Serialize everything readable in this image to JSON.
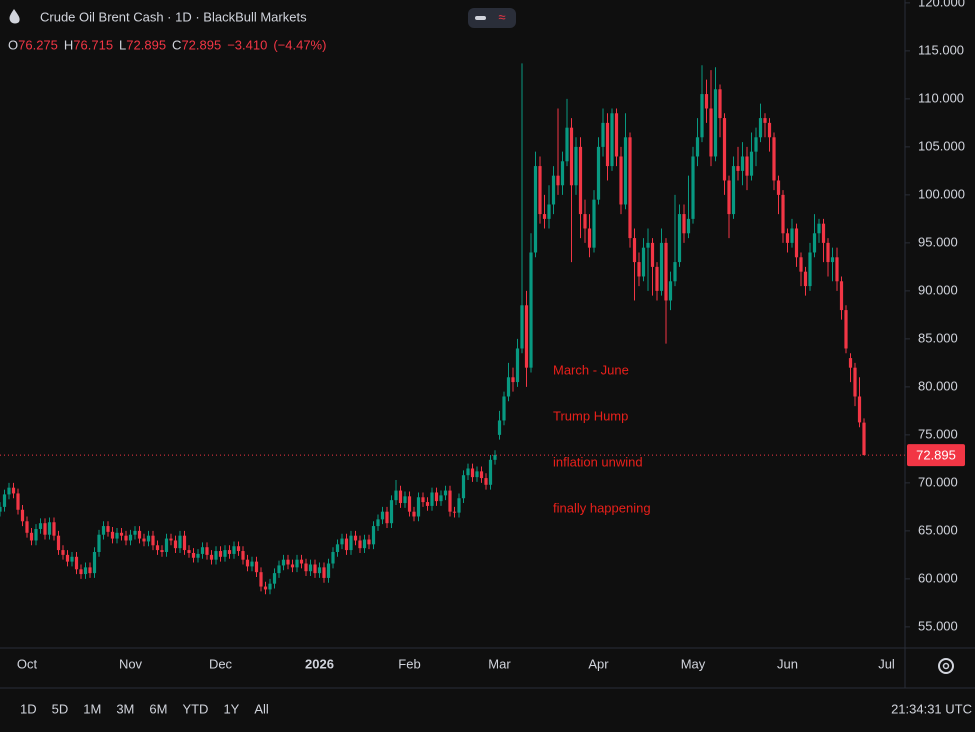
{
  "chart_data": {
    "type": "candlestick",
    "title": "Crude Oil Brent Cash · 1D · BlackBull Markets",
    "ohlc_legend": {
      "items": [
        {
          "key": "O",
          "value": "76.275"
        },
        {
          "key": "H",
          "value": "76.715"
        },
        {
          "key": "L",
          "value": "72.895"
        },
        {
          "key": "C",
          "value": "72.895"
        }
      ],
      "change": "−3.410",
      "change_pct": "(−4.47%)"
    },
    "annotation": [
      "March - June",
      "Trump Hump",
      "inflation unwind",
      "finally happening"
    ],
    "annotation_color": "#e8201b",
    "up_color": "#089981",
    "down_color": "#f23645",
    "grid": false,
    "ylim": [
      52.8,
      120.3
    ],
    "yticks": [
      {
        "value": 55,
        "label": "55.000"
      },
      {
        "value": 60,
        "label": "60.000"
      },
      {
        "value": 65,
        "label": "65.000"
      },
      {
        "value": 70,
        "label": "70.000"
      },
      {
        "value": 75,
        "label": "75.000"
      },
      {
        "value": 80,
        "label": "80.000"
      },
      {
        "value": 85,
        "label": "85.000"
      },
      {
        "value": 90,
        "label": "90.000"
      },
      {
        "value": 95,
        "label": "95.000"
      },
      {
        "value": 100,
        "label": "100.000"
      },
      {
        "value": 105,
        "label": "105.000"
      },
      {
        "value": 110,
        "label": "110.000"
      },
      {
        "value": 115,
        "label": "115.000"
      },
      {
        "value": 120,
        "label": "120.000"
      }
    ],
    "categories": [
      null,
      null,
      null,
      null,
      null,
      null,
      "Oct",
      null,
      null,
      null,
      null,
      null,
      null,
      null,
      null,
      null,
      null,
      null,
      null,
      null,
      null,
      null,
      null,
      null,
      null,
      null,
      null,
      null,
      null,
      "Nov",
      null,
      null,
      null,
      null,
      null,
      null,
      null,
      null,
      null,
      null,
      null,
      null,
      null,
      null,
      null,
      null,
      null,
      null,
      null,
      "Dec",
      null,
      null,
      null,
      null,
      null,
      null,
      null,
      null,
      null,
      null,
      null,
      null,
      null,
      null,
      null,
      null,
      null,
      null,
      null,
      null,
      null,
      "2026",
      null,
      null,
      null,
      null,
      null,
      null,
      null,
      null,
      null,
      null,
      null,
      null,
      null,
      null,
      null,
      null,
      null,
      null,
      null,
      "Feb",
      null,
      null,
      null,
      null,
      null,
      null,
      null,
      null,
      null,
      null,
      null,
      null,
      null,
      null,
      null,
      null,
      null,
      null,
      null,
      "Mar",
      null,
      null,
      null,
      null,
      null,
      null,
      null,
      null,
      null,
      null,
      null,
      null,
      null,
      null,
      null,
      null,
      null,
      null,
      null,
      null,
      null,
      "Apr",
      null,
      null,
      null,
      null,
      null,
      null,
      null,
      null,
      null,
      null,
      null,
      null,
      null,
      null,
      null,
      null,
      null,
      null,
      null,
      null,
      "May",
      null,
      null,
      null,
      null,
      null,
      null,
      null,
      null,
      null,
      null,
      null,
      null,
      null,
      null,
      null,
      null,
      null,
      null,
      null,
      null,
      "Jun",
      null,
      null,
      null,
      null,
      null,
      null,
      null,
      null,
      null,
      null,
      null,
      null,
      null,
      null,
      null,
      null,
      null,
      null,
      null,
      null,
      null,
      "Jul"
    ],
    "open": [
      67.0,
      67.5,
      68.8,
      69.5,
      68.9,
      67.2,
      66.0,
      64.8,
      64.0,
      65.2,
      65.8,
      64.6,
      65.9,
      64.5,
      63.0,
      62.5,
      61.8,
      62.3,
      61.0,
      60.5,
      61.2,
      60.6,
      62.8,
      64.6,
      65.5,
      64.9,
      64.2,
      64.8,
      64.5,
      64.0,
      64.6,
      65.0,
      64.2,
      63.9,
      64.5,
      63.5,
      63.0,
      62.8,
      64.2,
      64.0,
      63.2,
      64.5,
      63.0,
      62.7,
      62.2,
      62.6,
      63.3,
      62.5,
      62.0,
      62.9,
      62.3,
      63.0,
      62.6,
      63.4,
      62.9,
      62.0,
      61.3,
      61.8,
      60.7,
      59.2,
      58.9,
      59.5,
      60.6,
      61.4,
      62.0,
      61.5,
      61.2,
      62.0,
      61.6,
      60.8,
      61.5,
      60.6,
      61.2,
      60.1,
      61.6,
      62.8,
      63.6,
      64.2,
      63.0,
      64.5,
      64.0,
      63.2,
      64.1,
      63.6,
      65.5,
      66.2,
      67.0,
      65.8,
      68.2,
      69.2,
      67.9,
      68.6,
      67.0,
      66.5,
      68.5,
      68.0,
      67.6,
      69.0,
      68.1,
      68.7,
      69.2,
      67.0,
      66.9,
      68.4,
      70.8,
      71.5,
      70.6,
      71.2,
      70.5,
      69.8,
      72.4,
      75.0,
      76.5,
      79.0,
      81.0,
      80.5,
      84.0,
      88.5,
      82.0,
      94.0,
      103.0,
      98.0,
      97.5,
      99.0,
      102.0,
      101.0,
      103.5,
      107.0,
      101.0,
      105.0,
      98.0,
      96.5,
      94.5,
      99.5,
      105.0,
      107.5,
      103.0,
      108.5,
      104.0,
      99.0,
      106.0,
      95.5,
      93.0,
      91.5,
      94.5,
      95.0,
      92.5,
      90.0,
      95.0,
      89.0,
      91.0,
      93.0,
      98.0,
      96.0,
      97.5,
      104.0,
      106.0,
      110.5,
      109.0,
      104.0,
      111.0,
      108.0,
      101.5,
      98.0,
      103.0,
      102.5,
      104.0,
      102.0,
      104.5,
      106.0,
      108.0,
      107.5,
      106.0,
      101.5,
      100.0,
      96.0,
      95.0,
      96.5,
      93.5,
      92.0,
      90.5,
      94.0,
      96.0,
      97.0,
      95.0,
      93.0,
      93.5,
      91.0,
      88.0,
      83.0,
      82.0,
      79.0,
      76.275,
      null,
      null,
      null,
      null,
      null
    ],
    "high": [
      68.0,
      69.3,
      70.0,
      70.0,
      69.4,
      67.7,
      66.5,
      65.3,
      65.7,
      66.3,
      66.3,
      66.4,
      66.4,
      65.0,
      63.5,
      63.0,
      62.8,
      62.8,
      61.5,
      61.7,
      61.7,
      63.3,
      65.1,
      66.0,
      66.0,
      65.4,
      65.3,
      65.3,
      65.0,
      65.1,
      65.5,
      65.5,
      64.7,
      65.0,
      65.0,
      64.0,
      63.5,
      64.7,
      64.7,
      64.5,
      65.0,
      65.0,
      63.5,
      63.2,
      63.1,
      63.8,
      63.8,
      63.0,
      63.4,
      63.4,
      63.5,
      63.5,
      63.9,
      63.9,
      63.4,
      62.5,
      62.3,
      62.3,
      61.2,
      59.7,
      60.0,
      61.1,
      61.9,
      62.5,
      62.5,
      62.0,
      62.5,
      62.5,
      62.1,
      62.0,
      62.0,
      61.7,
      61.7,
      62.1,
      63.3,
      64.1,
      64.7,
      64.7,
      65.0,
      65.0,
      64.5,
      64.6,
      64.6,
      66.0,
      66.7,
      67.5,
      67.5,
      68.7,
      70.3,
      69.7,
      69.1,
      69.1,
      67.5,
      69.0,
      69.0,
      68.5,
      69.5,
      69.5,
      69.2,
      69.7,
      69.7,
      67.5,
      68.9,
      71.3,
      72.0,
      72.0,
      71.7,
      71.7,
      71.0,
      72.9,
      73.4,
      77.5,
      79.5,
      82.5,
      82.0,
      85.0,
      113.7,
      90.0,
      96.0,
      104.5,
      104.0,
      100.0,
      101.0,
      103.0,
      109.0,
      104.5,
      110.0,
      108.0,
      106.0,
      106.0,
      99.5,
      98.0,
      100.5,
      106.0,
      109.0,
      108.5,
      109.0,
      109.0,
      105.0,
      108.5,
      106.5,
      96.5,
      94.0,
      95.5,
      96.5,
      95.5,
      93.0,
      96.5,
      95.5,
      92.0,
      100.0,
      99.0,
      99.0,
      102.0,
      105.0,
      108.0,
      113.5,
      112.0,
      113.0,
      113.3,
      111.5,
      108.5,
      102.0,
      104.0,
      105.0,
      105.5,
      105.0,
      106.5,
      107.0,
      109.5,
      108.5,
      108.0,
      106.5,
      102.0,
      100.5,
      96.5,
      97.5,
      97.0,
      94.0,
      92.5,
      95.0,
      98.0,
      97.5,
      97.5,
      95.5,
      94.5,
      94.5,
      91.5,
      88.5,
      83.5,
      82.5,
      81.0,
      76.715,
      null,
      null,
      null,
      null,
      null
    ],
    "low": [
      66.5,
      67.0,
      68.3,
      68.4,
      66.7,
      65.5,
      64.3,
      63.5,
      63.5,
      64.7,
      64.1,
      64.1,
      64.0,
      62.5,
      62.0,
      61.3,
      61.3,
      60.5,
      60.0,
      60.0,
      60.1,
      60.1,
      62.3,
      64.1,
      64.4,
      63.7,
      63.7,
      64.0,
      63.5,
      63.5,
      64.1,
      63.7,
      63.4,
      63.4,
      63.0,
      62.5,
      62.3,
      62.3,
      63.5,
      62.7,
      62.7,
      62.5,
      62.2,
      61.7,
      61.7,
      62.1,
      62.0,
      61.5,
      61.5,
      61.8,
      61.8,
      62.1,
      62.1,
      62.4,
      61.5,
      60.8,
      60.8,
      60.2,
      58.7,
      58.4,
      58.4,
      59.0,
      60.1,
      60.9,
      61.0,
      60.7,
      60.7,
      61.1,
      60.3,
      60.3,
      60.1,
      60.1,
      59.6,
      59.6,
      61.1,
      62.3,
      63.1,
      62.5,
      62.5,
      63.5,
      62.7,
      62.7,
      63.1,
      63.1,
      65.0,
      65.7,
      65.3,
      65.3,
      67.7,
      67.4,
      67.4,
      66.5,
      66.0,
      66.0,
      67.5,
      67.1,
      67.1,
      67.6,
      67.6,
      68.2,
      66.5,
      66.4,
      66.4,
      67.9,
      70.3,
      70.1,
      70.1,
      70.0,
      69.3,
      69.3,
      71.9,
      74.5,
      76.0,
      78.5,
      79.5,
      80.0,
      83.5,
      80.0,
      81.5,
      93.5,
      97.0,
      96.5,
      96.5,
      98.0,
      100.0,
      100.0,
      103.0,
      93.0,
      100.0,
      95.5,
      95.0,
      93.5,
      94.0,
      99.0,
      104.0,
      101.5,
      102.5,
      103.0,
      98.0,
      98.5,
      94.5,
      89.0,
      90.5,
      91.0,
      90.0,
      89.5,
      89.0,
      89.5,
      84.5,
      88.0,
      90.5,
      92.5,
      95.0,
      95.5,
      97.0,
      103.0,
      105.5,
      107.5,
      103.0,
      103.5,
      106.0,
      100.0,
      95.5,
      97.5,
      101.5,
      101.0,
      100.5,
      101.5,
      103.0,
      105.5,
      106.0,
      104.5,
      100.5,
      98.0,
      95.0,
      94.0,
      94.5,
      92.5,
      90.5,
      89.5,
      90.0,
      93.5,
      95.0,
      93.0,
      91.5,
      91.0,
      90.0,
      87.0,
      83.5,
      80.5,
      78.0,
      75.8,
      72.895,
      null,
      null,
      null,
      null,
      null
    ],
    "close": [
      67.5,
      68.8,
      69.5,
      68.9,
      67.2,
      66.0,
      64.8,
      64.0,
      65.2,
      65.8,
      64.6,
      65.9,
      64.5,
      63.0,
      62.5,
      61.8,
      62.3,
      61.0,
      60.5,
      61.2,
      60.6,
      62.8,
      64.6,
      65.5,
      64.9,
      64.2,
      64.8,
      64.5,
      64.0,
      64.6,
      65.0,
      64.2,
      63.9,
      64.5,
      63.5,
      63.0,
      62.8,
      64.2,
      64.0,
      63.2,
      64.5,
      63.0,
      62.7,
      62.2,
      62.6,
      63.3,
      62.5,
      62.0,
      62.9,
      62.3,
      63.0,
      62.6,
      63.4,
      62.9,
      62.0,
      61.3,
      61.8,
      60.7,
      59.2,
      58.9,
      59.5,
      60.6,
      61.4,
      62.0,
      61.5,
      61.2,
      62.0,
      61.6,
      60.8,
      61.5,
      60.6,
      61.2,
      60.1,
      61.6,
      62.8,
      63.6,
      64.2,
      63.0,
      64.5,
      64.0,
      63.2,
      64.1,
      63.6,
      65.5,
      66.2,
      67.0,
      65.8,
      68.2,
      69.2,
      67.9,
      68.6,
      67.0,
      66.5,
      68.5,
      68.0,
      67.6,
      69.0,
      68.1,
      68.7,
      69.2,
      67.0,
      66.9,
      68.4,
      70.8,
      71.5,
      70.6,
      71.2,
      70.5,
      69.8,
      72.4,
      72.9,
      76.5,
      79.0,
      81.0,
      80.5,
      84.0,
      88.5,
      82.0,
      94.0,
      103.0,
      98.0,
      97.5,
      99.0,
      102.0,
      101.0,
      103.5,
      107.0,
      101.0,
      105.0,
      98.0,
      96.5,
      94.5,
      99.5,
      105.0,
      107.5,
      103.0,
      108.5,
      104.0,
      99.0,
      106.0,
      95.5,
      93.0,
      91.5,
      94.5,
      95.0,
      92.5,
      90.0,
      95.0,
      89.0,
      91.0,
      93.0,
      98.0,
      96.0,
      97.5,
      104.0,
      106.0,
      110.5,
      109.0,
      104.0,
      111.0,
      108.0,
      101.5,
      98.0,
      103.0,
      102.5,
      104.0,
      102.0,
      104.5,
      106.0,
      108.0,
      107.5,
      106.0,
      101.5,
      100.0,
      96.0,
      95.0,
      96.5,
      93.5,
      92.0,
      90.5,
      94.0,
      96.0,
      97.0,
      95.0,
      93.0,
      93.5,
      91.0,
      88.0,
      84.0,
      82.0,
      79.0,
      76.3,
      72.895,
      null,
      null,
      null,
      null,
      null
    ],
    "range_buttons": [
      "1D",
      "5D",
      "1M",
      "3M",
      "6M",
      "YTD",
      "1Y",
      "All"
    ],
    "clock": "21:34:31 UTC"
  }
}
